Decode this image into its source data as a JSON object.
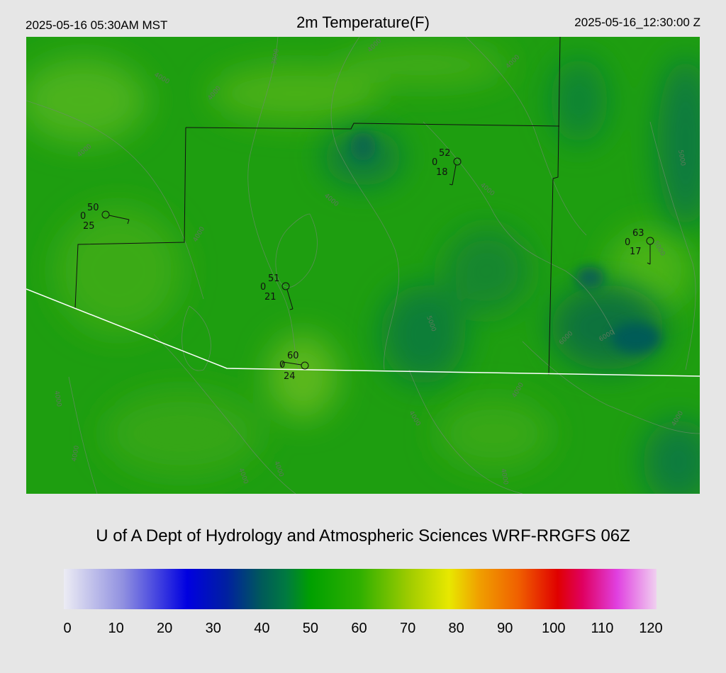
{
  "header": {
    "local_time": "2025-05-16 05:30AM MST",
    "title": "2m Temperature(F)",
    "utc_time": "2025-05-16_12:30:00 Z"
  },
  "credit": "U of A Dept of Hydrology and Atmospheric Sciences WRF-RRGFS 06Z",
  "colorbar": {
    "ticks": [
      "0",
      "10",
      "20",
      "30",
      "40",
      "50",
      "60",
      "70",
      "80",
      "90",
      "100",
      "110",
      "120"
    ],
    "min": 0,
    "max": 120,
    "stops": [
      {
        "value": 0,
        "color": "#ececf4"
      },
      {
        "value": 12,
        "color": "#9090e0"
      },
      {
        "value": 25,
        "color": "#0000e0"
      },
      {
        "value": 33,
        "color": "#0020a0"
      },
      {
        "value": 40,
        "color": "#005a5a"
      },
      {
        "value": 45,
        "color": "#007a40"
      },
      {
        "value": 50,
        "color": "#00a000"
      },
      {
        "value": 60,
        "color": "#30b000"
      },
      {
        "value": 70,
        "color": "#a0cc00"
      },
      {
        "value": 78,
        "color": "#e8e800"
      },
      {
        "value": 84,
        "color": "#f0a000"
      },
      {
        "value": 92,
        "color": "#f06000"
      },
      {
        "value": 100,
        "color": "#e00000"
      },
      {
        "value": 105,
        "color": "#e00060"
      },
      {
        "value": 112,
        "color": "#e040e0"
      },
      {
        "value": 120,
        "color": "#f0d0f0"
      }
    ]
  },
  "stations": [
    {
      "temp": "50",
      "dewpoint": "25",
      "cloud": "0"
    },
    {
      "temp": "52",
      "dewpoint": "18",
      "cloud": "0"
    },
    {
      "temp": "63",
      "dewpoint": "17",
      "cloud": "0"
    },
    {
      "temp": "51",
      "dewpoint": "21",
      "cloud": "0"
    },
    {
      "temp": "60",
      "dewpoint": "24",
      "cloud": "0"
    }
  ],
  "contour_labels": [
    "3000",
    "4000",
    "5000",
    "6000"
  ]
}
